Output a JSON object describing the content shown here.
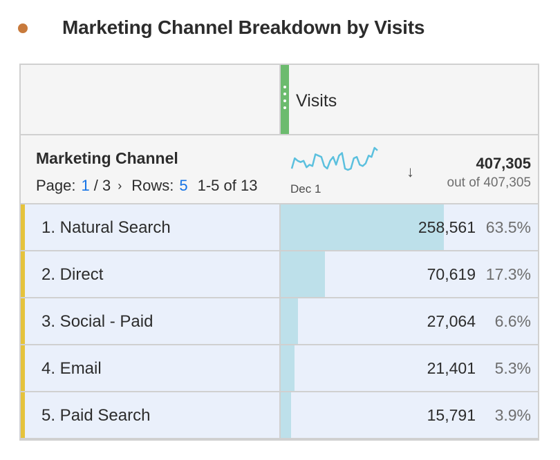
{
  "panel": {
    "title": "Marketing Channel Breakdown by Visits",
    "dot_color": "#c87a3c"
  },
  "metric": {
    "name": "Visits",
    "color": "#6cbb6e"
  },
  "dimension": {
    "name": "Marketing Channel",
    "pager": {
      "page_label": "Page:",
      "current_page": "1",
      "total_pages": "/ 3",
      "rows_label": "Rows:",
      "rows_value": "5",
      "range": "1-5 of 13"
    },
    "sparkline": {
      "label": "Dec 1",
      "color": "#5bc0de",
      "values": [
        14,
        22,
        20,
        19,
        20,
        15,
        17,
        16,
        25,
        24,
        23,
        16,
        14,
        20,
        23,
        17,
        24,
        26,
        14,
        13,
        14,
        22,
        23,
        17,
        16,
        18,
        24,
        23,
        30,
        28
      ]
    },
    "total": "407,305",
    "total_sub": "out of 407,305"
  },
  "rows": [
    {
      "label": "1. Natural Search",
      "value": "258,561",
      "pct": "63.5%",
      "fraction": 0.635
    },
    {
      "label": "2. Direct",
      "value": "70,619",
      "pct": "17.3%",
      "fraction": 0.173
    },
    {
      "label": "3. Social - Paid",
      "value": "27,064",
      "pct": "6.6%",
      "fraction": 0.066
    },
    {
      "label": "4. Email",
      "value": "21,401",
      "pct": "5.3%",
      "fraction": 0.053
    },
    {
      "label": "5. Paid Search",
      "value": "15,791",
      "pct": "3.9%",
      "fraction": 0.039
    }
  ],
  "colors": {
    "row_stripe": "#e5c33c",
    "bar": "#bde0ea",
    "link": "#1473e6"
  }
}
